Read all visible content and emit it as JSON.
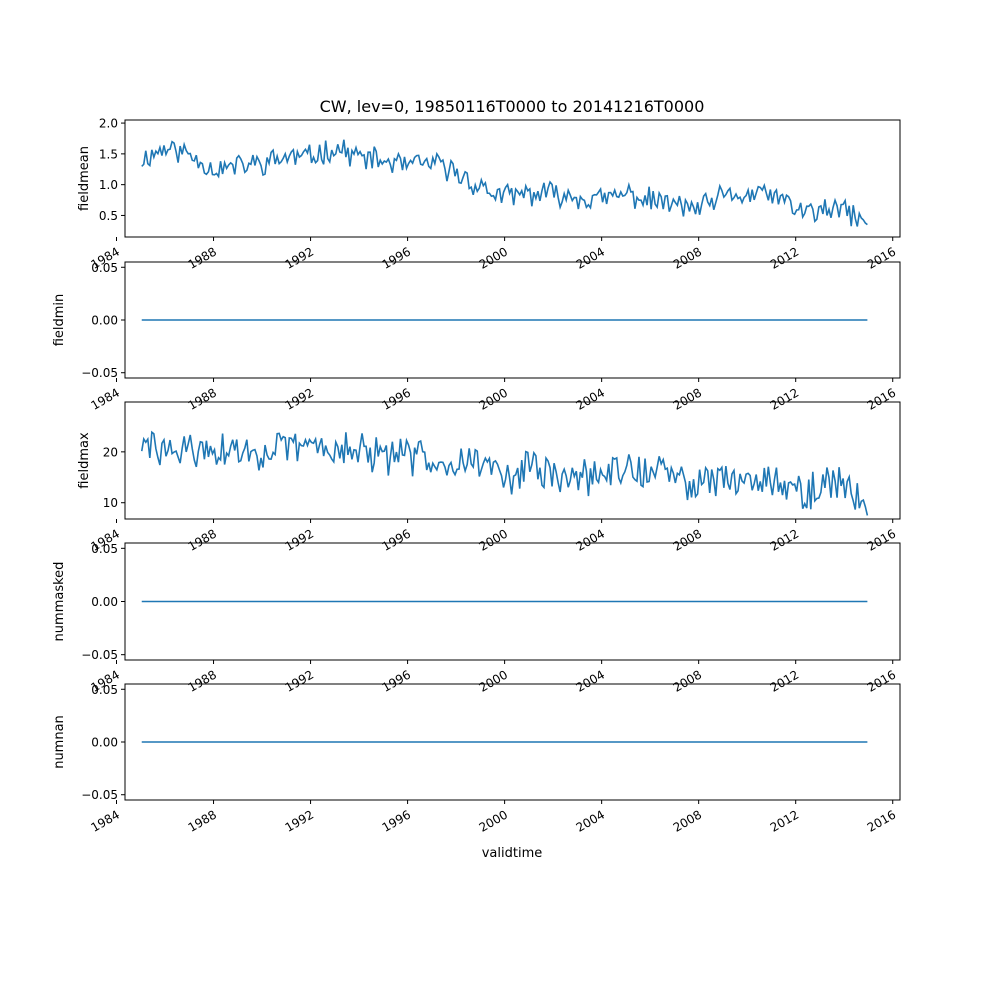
{
  "figure": {
    "title": "CW, lev=0, 19850116T0000 to 20141216T0000",
    "xlabel": "validtime"
  },
  "chart_data": [
    {
      "type": "line",
      "ylabel": "fieldmean",
      "xlim": [
        1984.35,
        2016.3
      ],
      "ylim": [
        0.15,
        2.05
      ],
      "yticks": [
        0.5,
        1.0,
        1.5,
        2.0
      ],
      "ytick_labels": [
        "0.5",
        "1.0",
        "1.5",
        "2.0"
      ],
      "xticks": [
        1984,
        1988,
        1992,
        1996,
        2000,
        2004,
        2008,
        2012,
        2016
      ],
      "xtick_labels": [
        "1984",
        "1988",
        "1992",
        "1996",
        "2000",
        "2004",
        "2008",
        "2012",
        "2016"
      ],
      "color": "#1f77b4",
      "series": [
        {
          "x_start": 1985.04,
          "x_step": 0.08333,
          "noise_seed": 11,
          "noise_amp": 0.17,
          "trend": [
            [
              1985,
              1.4
            ],
            [
              1986,
              1.6
            ],
            [
              1987,
              1.5
            ],
            [
              1988,
              1.25
            ],
            [
              1990,
              1.35
            ],
            [
              1991,
              1.45
            ],
            [
              1992,
              1.45
            ],
            [
              1993,
              1.6
            ],
            [
              1994,
              1.45
            ],
            [
              1996,
              1.3
            ],
            [
              1997,
              1.35
            ],
            [
              1998,
              1.2
            ],
            [
              1999,
              0.95
            ],
            [
              2000,
              0.8
            ],
            [
              2001,
              0.85
            ],
            [
              2002,
              0.85
            ],
            [
              2004,
              0.75
            ],
            [
              2005,
              0.85
            ],
            [
              2006,
              0.75
            ],
            [
              2008,
              0.6
            ],
            [
              2009,
              0.8
            ],
            [
              2011,
              0.85
            ],
            [
              2012,
              0.6
            ],
            [
              2013,
              0.55
            ],
            [
              2014,
              0.6
            ],
            [
              2014.96,
              0.35
            ]
          ]
        }
      ]
    },
    {
      "type": "line",
      "ylabel": "fieldmin",
      "xlim": [
        1984.35,
        2016.3
      ],
      "ylim": [
        -0.055,
        0.055
      ],
      "yticks": [
        -0.05,
        0.0,
        0.05
      ],
      "ytick_labels": [
        "−0.05",
        "0.00",
        "0.05"
      ],
      "xticks": [
        1984,
        1988,
        1992,
        1996,
        2000,
        2004,
        2008,
        2012,
        2016
      ],
      "xtick_labels": [
        "1984",
        "1988",
        "1992",
        "1996",
        "2000",
        "2004",
        "2008",
        "2012",
        "2016"
      ],
      "color": "#1f77b4",
      "series": [
        {
          "x_start": 1985.04,
          "x_step": 0.08333,
          "constant": 0.0,
          "trend": [
            [
              1985,
              0.0
            ],
            [
              2014.96,
              0.0
            ]
          ]
        }
      ]
    },
    {
      "type": "line",
      "ylabel": "fieldmax",
      "xlim": [
        1984.35,
        2016.3
      ],
      "ylim": [
        6.8,
        29.8
      ],
      "yticks": [
        10,
        20
      ],
      "ytick_labels": [
        "10",
        "20"
      ],
      "xticks": [
        1984,
        1988,
        1992,
        1996,
        2000,
        2004,
        2008,
        2012,
        2016
      ],
      "xtick_labels": [
        "1984",
        "1988",
        "1992",
        "1996",
        "2000",
        "2004",
        "2008",
        "2012",
        "2016"
      ],
      "color": "#1f77b4",
      "series": [
        {
          "x_start": 1985.04,
          "x_step": 0.08333,
          "noise_seed": 29,
          "noise_amp": 3.2,
          "trend": [
            [
              1985,
              21
            ],
            [
              1987,
              20
            ],
            [
              1990,
              20
            ],
            [
              1992,
              21
            ],
            [
              1993,
              21
            ],
            [
              1995,
              19
            ],
            [
              1997,
              19
            ],
            [
              1999,
              18
            ],
            [
              2000,
              15
            ],
            [
              2001,
              17
            ],
            [
              2002,
              15
            ],
            [
              2004,
              15
            ],
            [
              2005,
              17
            ],
            [
              2006,
              16
            ],
            [
              2008,
              14
            ],
            [
              2010,
              15
            ],
            [
              2011,
              15
            ],
            [
              2012,
              12
            ],
            [
              2013,
              13
            ],
            [
              2014,
              14
            ],
            [
              2014.96,
              9
            ]
          ]
        }
      ]
    },
    {
      "type": "line",
      "ylabel": "nummasked",
      "xlim": [
        1984.35,
        2016.3
      ],
      "ylim": [
        -0.055,
        0.055
      ],
      "yticks": [
        -0.05,
        0.0,
        0.05
      ],
      "ytick_labels": [
        "−0.05",
        "0.00",
        "0.05"
      ],
      "xticks": [
        1984,
        1988,
        1992,
        1996,
        2000,
        2004,
        2008,
        2012,
        2016
      ],
      "xtick_labels": [
        "1984",
        "1988",
        "1992",
        "1996",
        "2000",
        "2004",
        "2008",
        "2012",
        "2016"
      ],
      "color": "#1f77b4",
      "series": [
        {
          "x_start": 1985.04,
          "x_step": 0.08333,
          "constant": 0.0,
          "trend": [
            [
              1985,
              0.0
            ],
            [
              2014.96,
              0.0
            ]
          ]
        }
      ]
    },
    {
      "type": "line",
      "ylabel": "numnan",
      "xlim": [
        1984.35,
        2016.3
      ],
      "ylim": [
        -0.055,
        0.055
      ],
      "yticks": [
        -0.05,
        0.0,
        0.05
      ],
      "ytick_labels": [
        "−0.05",
        "0.00",
        "0.05"
      ],
      "xticks": [
        1984,
        1988,
        1992,
        1996,
        2000,
        2004,
        2008,
        2012,
        2016
      ],
      "xtick_labels": [
        "1984",
        "1988",
        "1992",
        "1996",
        "2000",
        "2004",
        "2008",
        "2012",
        "2016"
      ],
      "color": "#1f77b4",
      "series": [
        {
          "x_start": 1985.04,
          "x_step": 0.08333,
          "constant": 0.0,
          "trend": [
            [
              1985,
              0.0
            ],
            [
              2014.96,
              0.0
            ]
          ]
        }
      ]
    }
  ]
}
